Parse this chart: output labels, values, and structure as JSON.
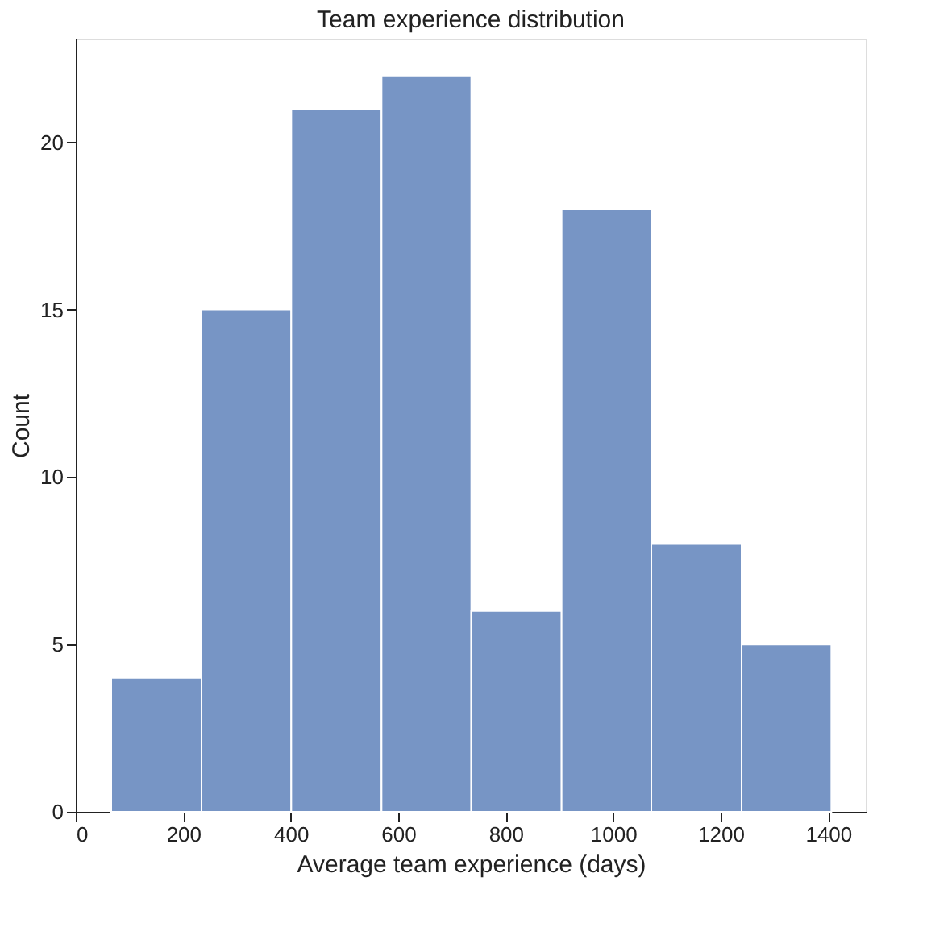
{
  "chart_data": {
    "type": "histogram",
    "title": "Team experience distribution",
    "xlabel": "Average team experience (days)",
    "ylabel": "Count",
    "bins": [
      66,
      234,
      401,
      569,
      736,
      904,
      1071,
      1239,
      1406
    ],
    "values": [
      4,
      15,
      21,
      22,
      6,
      18,
      8,
      5
    ],
    "color": "#7795c5",
    "xlim": [
      0,
      1470
    ],
    "xticks": [
      0,
      200,
      400,
      600,
      800,
      1000,
      1200,
      1400
    ],
    "ylim": [
      0,
      23.1
    ],
    "yticks": [
      0,
      5,
      10,
      15,
      20
    ],
    "grid": false
  }
}
